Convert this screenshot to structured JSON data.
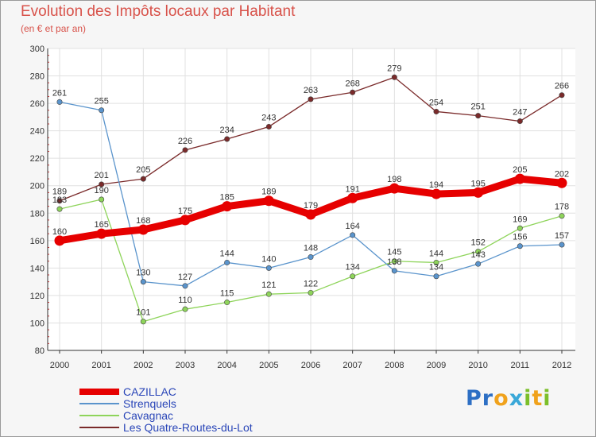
{
  "chart_data": {
    "type": "line",
    "title": "Evolution des Impôts locaux par Habitant",
    "subtitle": "(en € et par an)",
    "x": [
      "2000",
      "2001",
      "2002",
      "2003",
      "2004",
      "2005",
      "2006",
      "2007",
      "2008",
      "2009",
      "2010",
      "2011",
      "2012"
    ],
    "ylim": [
      80,
      300
    ],
    "yticks": [
      80,
      100,
      120,
      140,
      160,
      180,
      200,
      220,
      240,
      260,
      280,
      300
    ],
    "series": [
      {
        "name": "CAZILLAC",
        "color": "#e60000",
        "values": [
          160,
          165,
          168,
          175,
          185,
          189,
          179,
          191,
          198,
          194,
          195,
          205,
          202
        ]
      },
      {
        "name": "Strenquels",
        "color": "#5a94cc",
        "values": [
          261,
          255,
          130,
          127,
          144,
          140,
          148,
          164,
          138,
          134,
          143,
          156,
          157
        ]
      },
      {
        "name": "Cavagnac",
        "color": "#8ed45a",
        "values": [
          183,
          190,
          101,
          110,
          115,
          121,
          122,
          134,
          145,
          144,
          152,
          169,
          178
        ]
      },
      {
        "name": "Les Quatre-Routes-du-Lot",
        "color": "#7a2a2a",
        "values": [
          189,
          201,
          205,
          226,
          234,
          243,
          263,
          268,
          279,
          254,
          251,
          247,
          266
        ]
      }
    ]
  },
  "logo": {
    "text": "Proxiti",
    "letters": [
      "P",
      "r",
      "o",
      "x",
      "i",
      "t",
      "i"
    ]
  }
}
